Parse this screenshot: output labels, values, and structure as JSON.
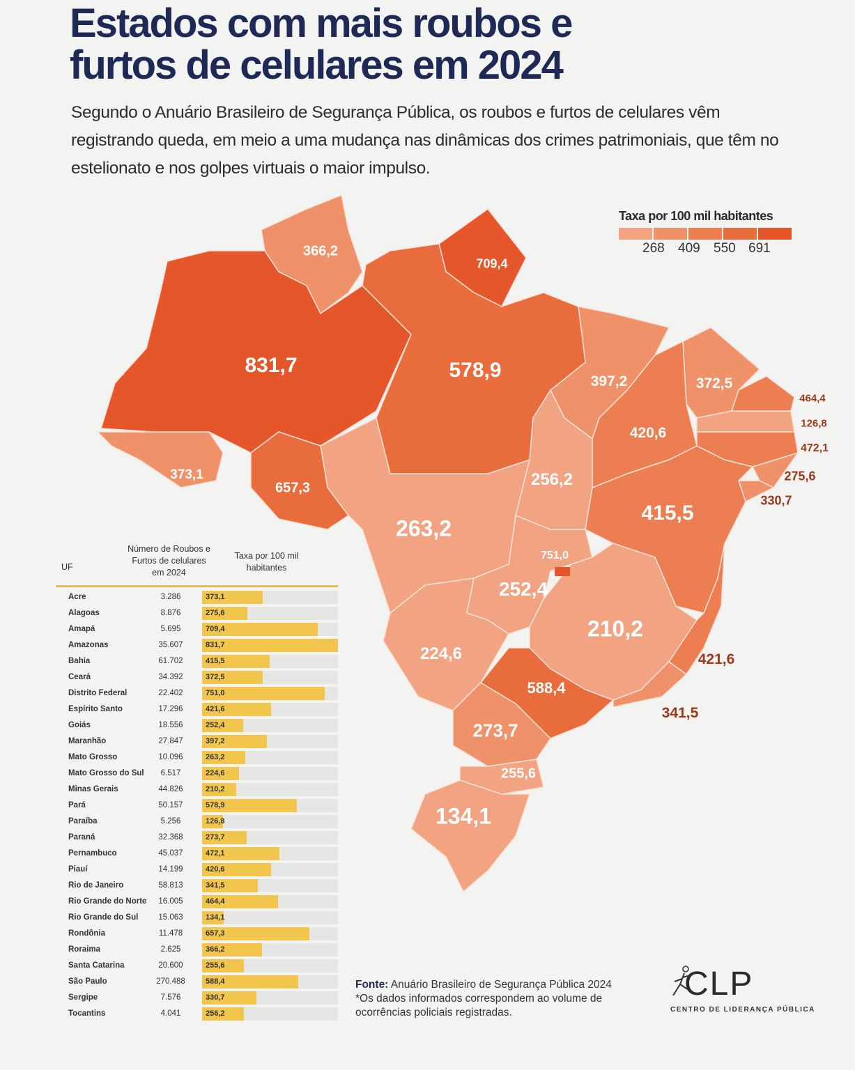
{
  "title": [
    "Estados com mais roubos e",
    "furtos de celulares em 2024"
  ],
  "subtitle": "Segundo o Anuário Brasileiro de Segurança Pública, os roubos e furtos de celulares vêm registrando queda, em meio a uma mudança nas dinâmicas dos crimes patrimoniais, que têm no estelionato e nos golpes virtuais o maior impulso.",
  "legend": {
    "title": "Taxa por 100 mil habitantes",
    "ticks": [
      "268",
      "409",
      "550",
      "691"
    ],
    "colors": [
      "#f2a382",
      "#ef9169",
      "#ec7e52",
      "#e96c3d",
      "#e5562a"
    ]
  },
  "table": {
    "headers": {
      "uf": "UF",
      "count": "Número de Roubos e Furtos de celulares em 2024",
      "rate": "Taxa por 100 mil habitantes"
    },
    "bar_color": "#f2c64c"
  },
  "states": [
    {
      "name": "Acre",
      "count": "3.286",
      "rate": "373,1"
    },
    {
      "name": "Alagoas",
      "count": "8.876",
      "rate": "275,6"
    },
    {
      "name": "Amapá",
      "count": "5.695",
      "rate": "709,4"
    },
    {
      "name": "Amazonas",
      "count": "35.607",
      "rate": "831,7"
    },
    {
      "name": "Bahia",
      "count": "61.702",
      "rate": "415,5"
    },
    {
      "name": "Ceará",
      "count": "34.392",
      "rate": "372,5"
    },
    {
      "name": "Distrito Federal",
      "count": "22.402",
      "rate": "751,0"
    },
    {
      "name": "Espírito Santo",
      "count": "17.296",
      "rate": "421,6"
    },
    {
      "name": "Goiás",
      "count": "18.556",
      "rate": "252,4"
    },
    {
      "name": "Maranhão",
      "count": "27.847",
      "rate": "397,2"
    },
    {
      "name": "Mato Grosso",
      "count": "10.096",
      "rate": "263,2"
    },
    {
      "name": "Mato Grosso do Sul",
      "count": "6.517",
      "rate": "224,6"
    },
    {
      "name": "Minas Gerais",
      "count": "44.826",
      "rate": "210,2"
    },
    {
      "name": "Pará",
      "count": "50.157",
      "rate": "578,9"
    },
    {
      "name": "Paraíba",
      "count": "5.256",
      "rate": "126,8"
    },
    {
      "name": "Paraná",
      "count": "32.368",
      "rate": "273,7"
    },
    {
      "name": "Pernambuco",
      "count": "45.037",
      "rate": "472,1"
    },
    {
      "name": "Piauí",
      "count": "14.199",
      "rate": "420,6"
    },
    {
      "name": "Rio de Janeiro",
      "count": "58.813",
      "rate": "341,5"
    },
    {
      "name": "Rio Grande do Norte",
      "count": "16.005",
      "rate": "464,4"
    },
    {
      "name": "Rio Grande do Sul",
      "count": "15.063",
      "rate": "134,1"
    },
    {
      "name": "Rondônia",
      "count": "11.478",
      "rate": "657,3"
    },
    {
      "name": "Roraima",
      "count": "2.625",
      "rate": "366,2"
    },
    {
      "name": "Santa Catarina",
      "count": "20.600",
      "rate": "255,6"
    },
    {
      "name": "São Paulo",
      "count": "270.488",
      "rate": "588,4"
    },
    {
      "name": "Sergipe",
      "count": "7.576",
      "rate": "330,7"
    },
    {
      "name": "Tocantins",
      "count": "4.041",
      "rate": "256,2"
    }
  ],
  "footer": {
    "source_label": "Fonte:",
    "source": " Anuário Brasileiro de Segurança Pública 2024",
    "note": "*Os dados informados correspondem ao volume de ocorrências policiais registradas."
  },
  "logo": {
    "name": "CLP",
    "full": "CENTRO DE LIDERANÇA PÚBLICA"
  }
}
